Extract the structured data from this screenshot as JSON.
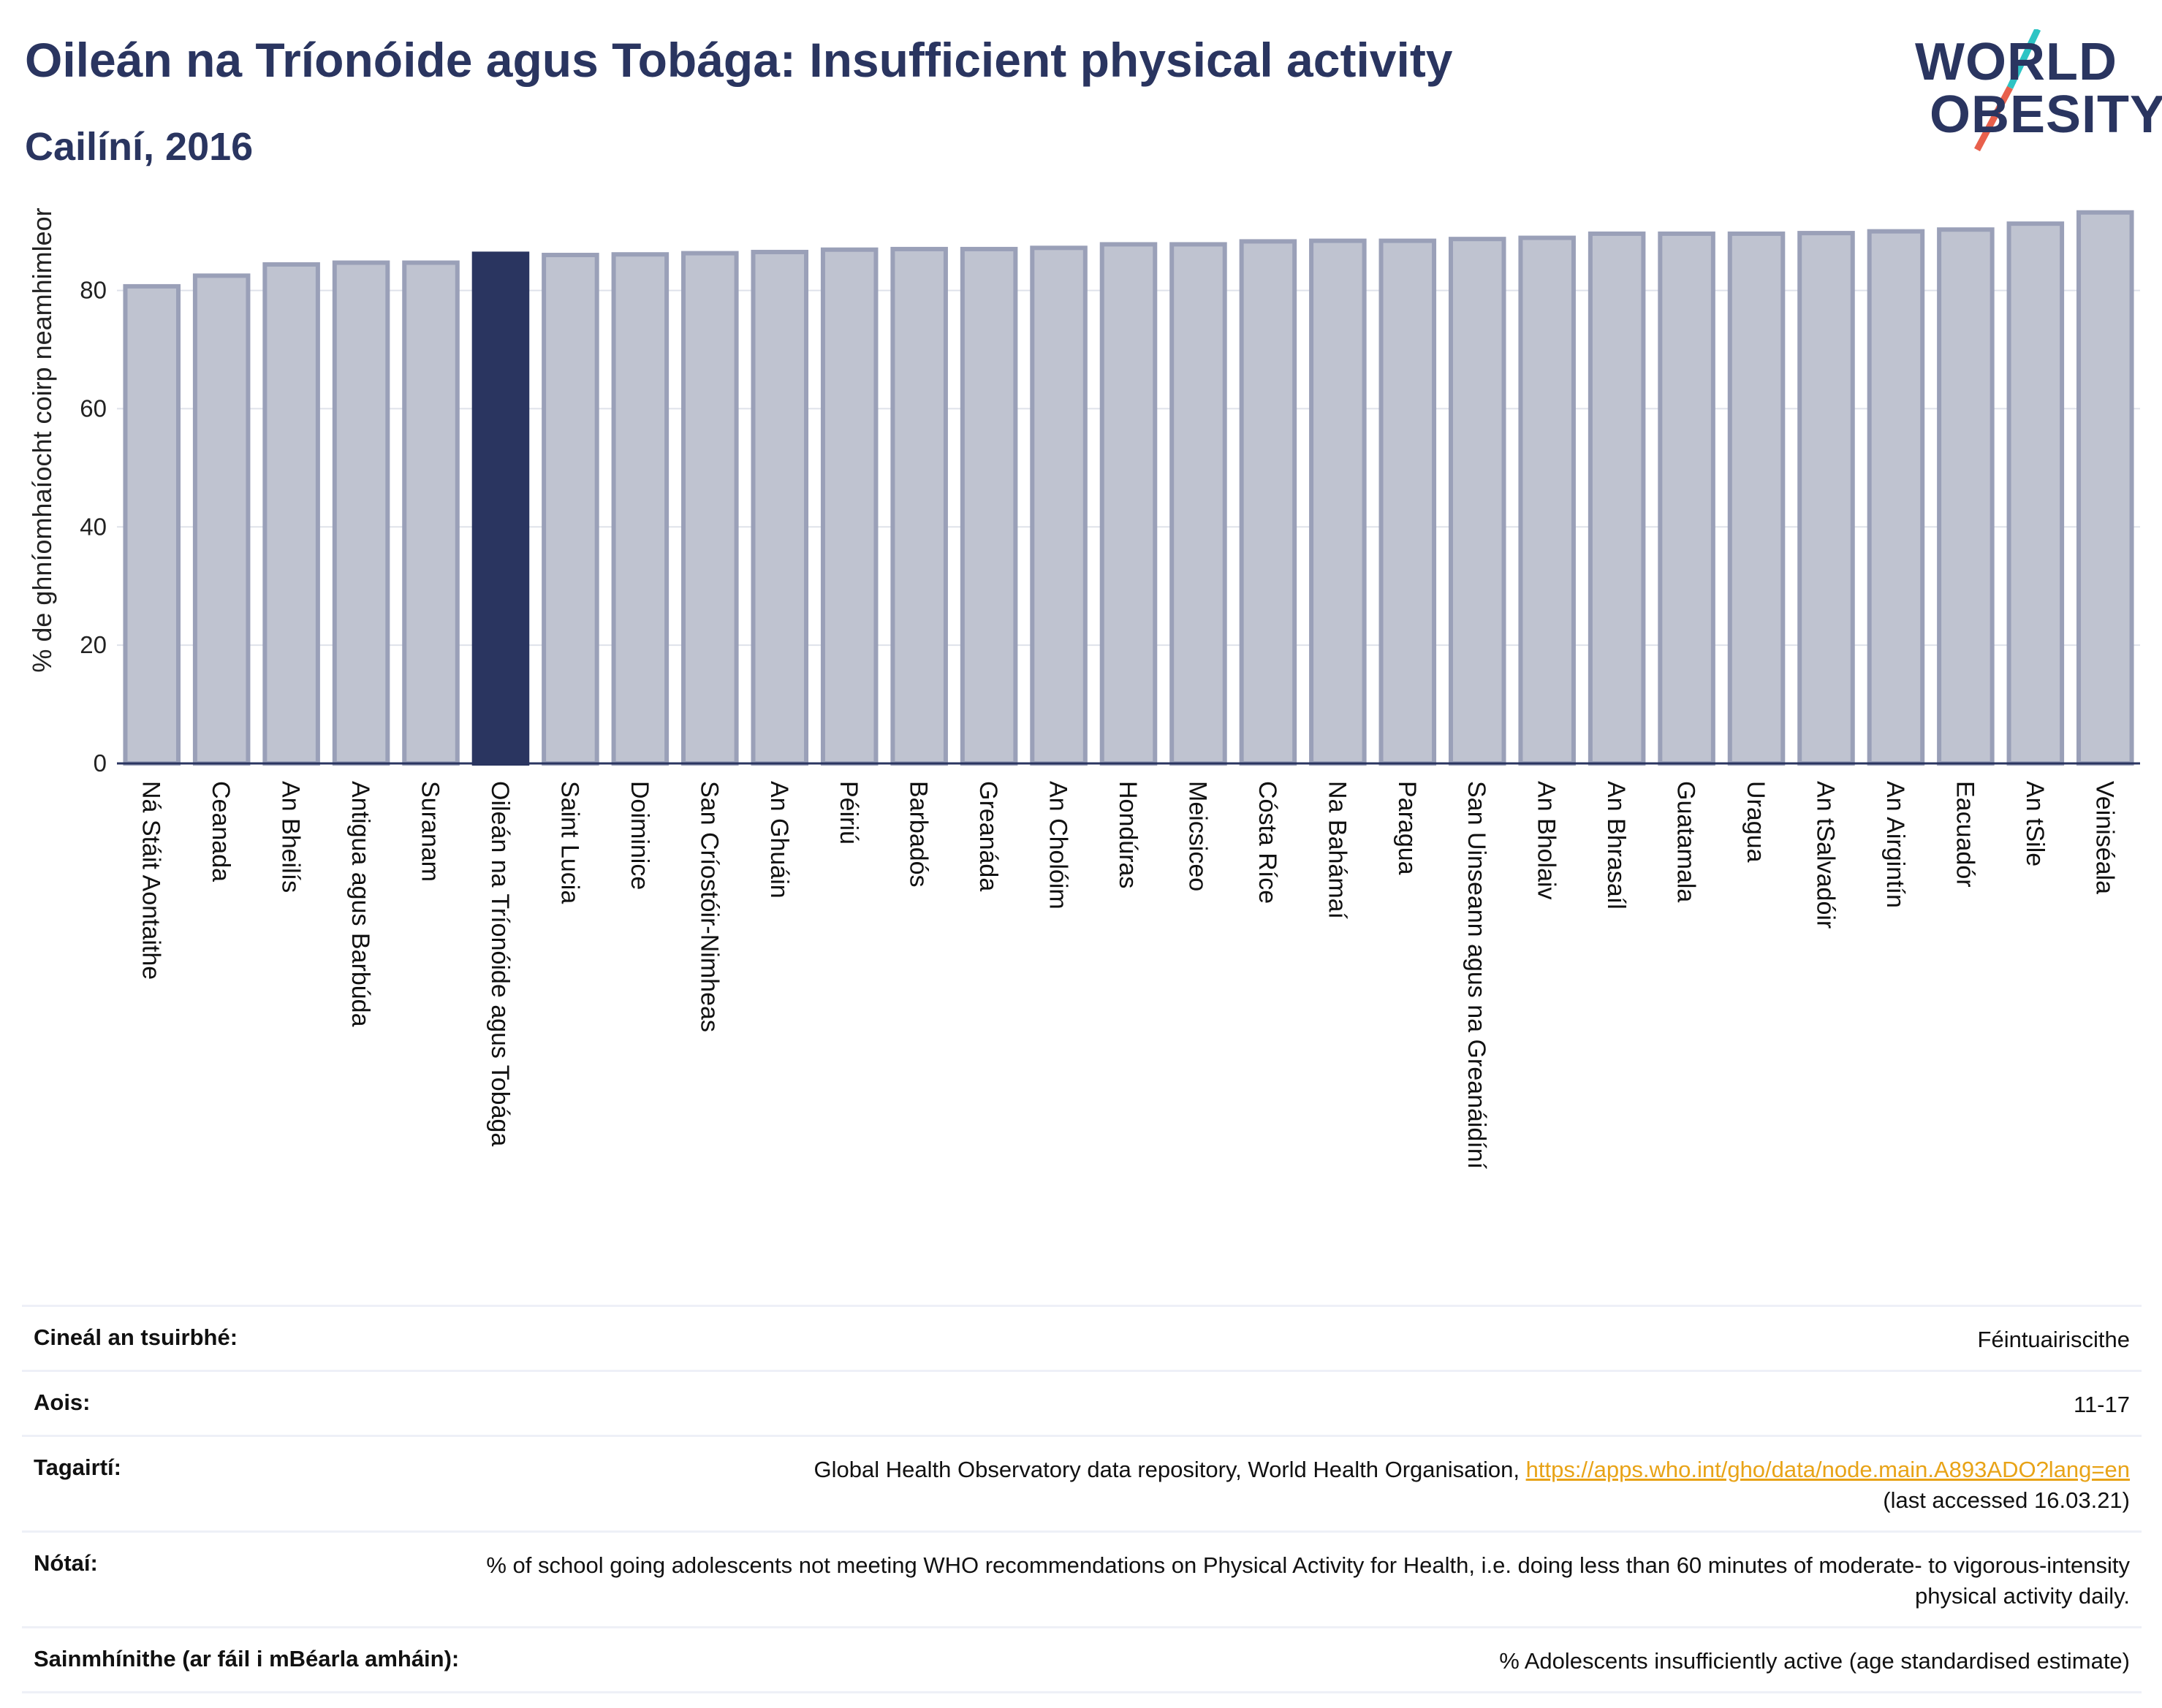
{
  "header": {
    "title": "Oileán na Tríonóide agus Tobága: Insufficient physical activity",
    "subtitle": "Cailíní, 2016"
  },
  "logo": {
    "line1": "WORLD",
    "line2": "OBESITY",
    "accent_colors": [
      "#2ec4c4",
      "#e8604c"
    ]
  },
  "colors": {
    "highlight": "#2a3560",
    "bar": "#bfc3d0",
    "bar_edge": "#9aa0b8",
    "axis": "#2a3560"
  },
  "chart_data": {
    "type": "bar",
    "ylabel": "% de ghníomhaíocht coirp neamhimleor",
    "ylim": [
      0,
      97
    ],
    "yticks": [
      0,
      20,
      40,
      60,
      80
    ],
    "grid": true,
    "highlight": "Oileán na Tríonóide agus Tobága",
    "categories": [
      "Ná Stáit Aontaithe",
      "Ceanada",
      "An Bheilís",
      "Antigua agus Barbúda",
      "Suranam",
      "Oileán na Tríonóide agus Tobága",
      "Saint Lucia",
      "Doiminice",
      "San Críostóir-Nimheas",
      "An Ghuáin",
      "Péiriú",
      "Barbadós",
      "Greanáda",
      "An Cholóim",
      "Hondúras",
      "Meicsiceo",
      "Cósta Ríce",
      "Na Bahámaí",
      "Paragua",
      "San Uinseann agus na Greanáidíní",
      "An Bholaiv",
      "An Bhrasaíl",
      "Guatamala",
      "Uragua",
      "An tSalvadóir",
      "An Airgintín",
      "Eacuadór",
      "An tSile",
      "Veiniséala"
    ],
    "values": [
      80.7,
      82.5,
      84.4,
      84.7,
      84.7,
      86.2,
      86.0,
      86.1,
      86.3,
      86.5,
      86.9,
      87.0,
      87.0,
      87.2,
      87.8,
      87.8,
      88.3,
      88.4,
      88.4,
      88.7,
      88.9,
      89.6,
      89.6,
      89.6,
      89.7,
      90.0,
      90.3,
      91.3,
      93.2
    ]
  },
  "metadata": [
    {
      "label": "Cineál an tsuirbhé:",
      "value": "Féintuairiscithe"
    },
    {
      "label": "Aois:",
      "value": "11-17"
    },
    {
      "label": "Tagairtí:",
      "value": "Global Health Observatory data repository, World Health Organisation, ",
      "link": "https://apps.who.int/gho/data/node.main.A893ADO?lang=en",
      "value2": "(last accessed 16.03.21)"
    },
    {
      "label": "Nótaí:",
      "value": "% of school going adolescents not meeting WHO recommendations on Physical Activity for Health, i.e. doing less than 60 minutes of moderate- to vigorous-intensity physical activity daily."
    },
    {
      "label": "Sainmhínithe (ar fáil i mBéarla amháin):",
      "value": "% Adolescents insufficiently active (age standardised estimate)"
    }
  ]
}
